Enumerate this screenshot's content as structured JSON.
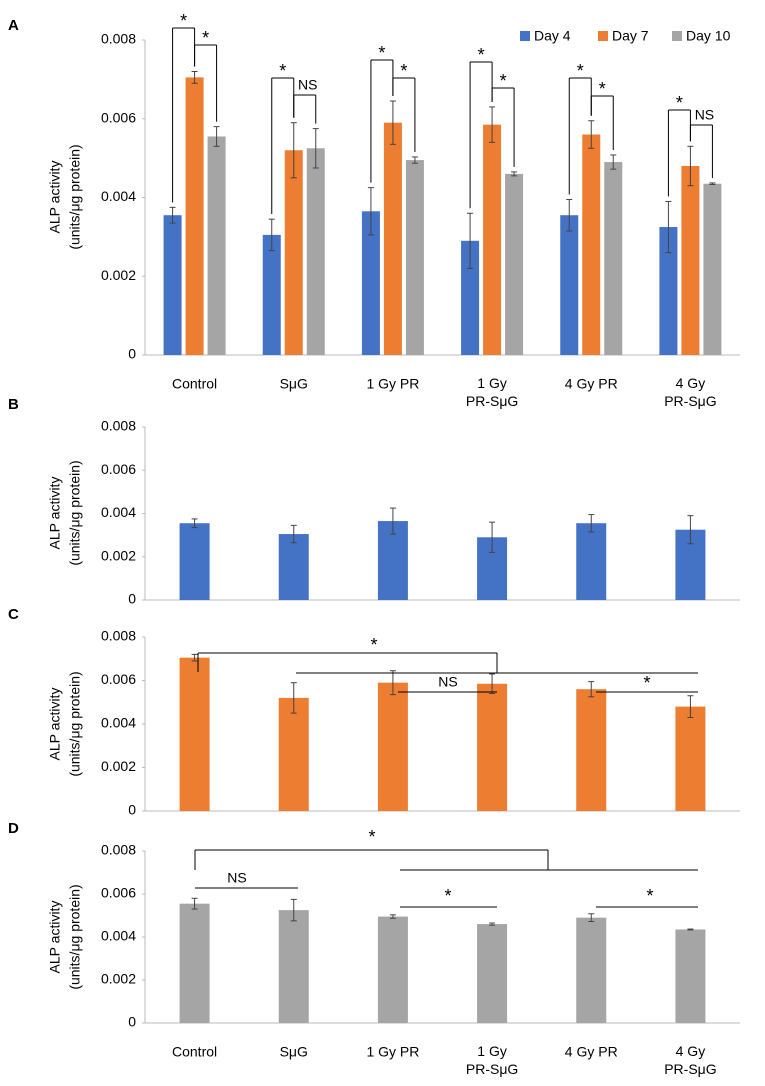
{
  "chart_data": [
    {
      "type": "grouped_bar",
      "label": "A",
      "ylabel": [
        "ALP activity",
        "(units/μg protein)"
      ],
      "categories": [
        "Control",
        "SμG",
        "1 Gy PR",
        "1 Gy PR-SμG",
        "4 Gy PR",
        "4 Gy PR-SμG"
      ],
      "series": [
        {
          "name": "Day 4",
          "color": "#4472c4",
          "values": [
            0.00355,
            0.00305,
            0.00365,
            0.0029,
            0.00355,
            0.00325
          ],
          "errors": [
            0.0002,
            0.0004,
            0.0006,
            0.0007,
            0.0004,
            0.00065
          ]
        },
        {
          "name": "Day 7",
          "color": "#ed7d31",
          "values": [
            0.00705,
            0.0052,
            0.0059,
            0.00585,
            0.0056,
            0.0048
          ],
          "errors": [
            0.00015,
            0.0007,
            0.00055,
            0.00045,
            0.00035,
            0.0005
          ]
        },
        {
          "name": "Day 10",
          "color": "#a5a5a5",
          "values": [
            0.00555,
            0.00525,
            0.00495,
            0.0046,
            0.0049,
            0.00435
          ],
          "errors": [
            0.00025,
            0.0005,
            8e-05,
            5e-05,
            0.00018,
            2e-05
          ]
        }
      ],
      "ylim": [
        0,
        0.008
      ],
      "yticks": [
        0,
        0.002,
        0.004,
        0.006,
        0.008
      ],
      "legend": "top-right",
      "annotations": [
        "*",
        "*",
        "*",
        "NS",
        "*",
        "*",
        "*",
        "*",
        "*",
        "*",
        "*",
        "NS"
      ]
    },
    {
      "type": "bar",
      "label": "B",
      "ylabel": [
        "ALP activity",
        "(units/μg protein)"
      ],
      "values": [
        0.00355,
        0.00305,
        0.00365,
        0.0029,
        0.00355,
        0.00325
      ],
      "errors": [
        0.0002,
        0.0004,
        0.0006,
        0.0007,
        0.0004,
        0.00065
      ],
      "color": "#4472c4",
      "ylim": [
        0,
        0.008
      ],
      "yticks": [
        0,
        0.002,
        0.004,
        0.006,
        0.008
      ],
      "annotations": []
    },
    {
      "type": "bar",
      "label": "C",
      "ylabel": [
        "ALP activity",
        "(units/μg protein)"
      ],
      "values": [
        0.00705,
        0.0052,
        0.0059,
        0.00585,
        0.0056,
        0.0048
      ],
      "errors": [
        0.00015,
        0.0007,
        0.00055,
        0.00045,
        0.00035,
        0.0005
      ],
      "color": "#ed7d31",
      "ylim": [
        0,
        0.008
      ],
      "yticks": [
        0,
        0.002,
        0.004,
        0.006,
        0.008
      ],
      "annotations": [
        "*",
        "NS",
        "*"
      ]
    },
    {
      "type": "bar",
      "label": "D",
      "ylabel": [
        "ALP activity",
        "(units/μg protein)"
      ],
      "categories": [
        "Control",
        "SμG",
        "1 Gy PR",
        "1 Gy PR-SμG",
        "4 Gy PR",
        "4 Gy PR-SμG"
      ],
      "values": [
        0.00555,
        0.00525,
        0.00495,
        0.0046,
        0.0049,
        0.00435
      ],
      "errors": [
        0.00025,
        0.0005,
        8e-05,
        5e-05,
        0.00018,
        2e-05
      ],
      "color": "#a5a5a5",
      "ylim": [
        0,
        0.008
      ],
      "yticks": [
        0,
        0.002,
        0.004,
        0.006,
        0.008
      ],
      "annotations": [
        "*",
        "NS",
        "*",
        "*"
      ]
    }
  ]
}
